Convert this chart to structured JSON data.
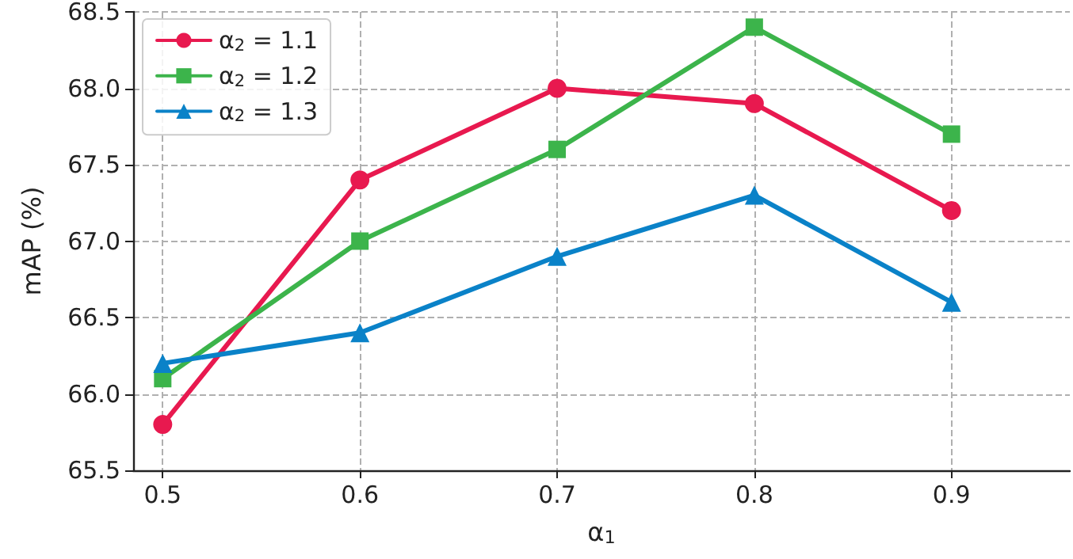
{
  "chart_data": {
    "type": "line",
    "xlabel": "α$_{1}$",
    "ylabel": "mAP (%)",
    "x": [
      0.5,
      0.6,
      0.7,
      0.8,
      0.9
    ],
    "series": [
      {
        "name": "α$_{2}$ = 1.1",
        "color": "#e8194f",
        "marker": "circle",
        "values": [
          65.8,
          67.4,
          68.0,
          67.9,
          67.2
        ]
      },
      {
        "name": "α$_{2}$ = 1.2",
        "color": "#3cb44b",
        "marker": "square",
        "values": [
          66.1,
          67.0,
          67.6,
          68.4,
          67.7
        ]
      },
      {
        "name": "α$_{2}$ = 1.3",
        "color": "#0a82c8",
        "marker": "triangle",
        "values": [
          66.2,
          66.4,
          66.9,
          67.3,
          66.6
        ]
      }
    ],
    "xlim": [
      0.485,
      0.96
    ],
    "xticks": [
      0.5,
      0.6,
      0.7,
      0.8,
      0.9
    ],
    "ylim": [
      65.5,
      68.5
    ],
    "yticks": [
      {
        "value": 65.5,
        "label": "65.5"
      },
      {
        "value": 66,
        "label": "66.0"
      },
      {
        "value": 66.5,
        "label": "66.5"
      },
      {
        "value": 67,
        "label": "67.0"
      },
      {
        "value": 67.5,
        "label": "67.5"
      },
      {
        "value": 68,
        "label": "68.0"
      },
      {
        "value": 68.5,
        "label": "68.5"
      }
    ],
    "grid": true,
    "legend": "top left",
    "line_style": "solid"
  }
}
